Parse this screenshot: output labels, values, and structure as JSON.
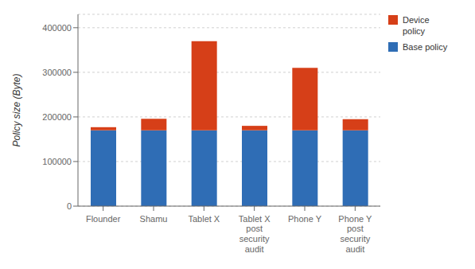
{
  "chart_data": {
    "type": "bar",
    "stacked": true,
    "categories": [
      "Flounder",
      "Shamu",
      "Tablet X",
      "Tablet X\npost\nsecurity\naudit",
      "Phone Y",
      "Phone Y\npost\nsecurity\naudit"
    ],
    "series": [
      {
        "name": "Base policy",
        "color": "#2f6db5",
        "values": [
          170000,
          170000,
          170000,
          170000,
          170000,
          170000
        ]
      },
      {
        "name": "Device\npolicy",
        "color": "#d63f18",
        "values": [
          7000,
          26000,
          200000,
          10000,
          140000,
          25000
        ]
      }
    ],
    "ylabel": "Policy size (Byte)",
    "ylim": [
      0,
      430000
    ],
    "yticks": [
      0,
      100000,
      200000,
      300000,
      400000
    ],
    "grid": true,
    "legend": "upper right"
  }
}
